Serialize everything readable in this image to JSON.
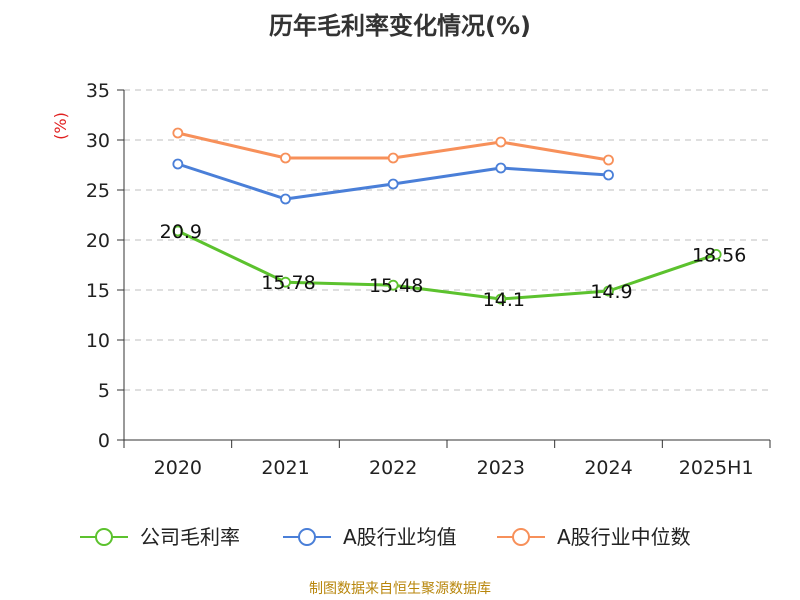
{
  "chart_data": {
    "type": "line",
    "title": "历年毛利率变化情况(%)",
    "ylabel": "(%)",
    "categories": [
      "2020",
      "2021",
      "2022",
      "2023",
      "2024",
      "2025H1"
    ],
    "ylim": [
      0,
      35
    ],
    "yticks": [
      "0",
      "5",
      "10",
      "15",
      "20",
      "25",
      "30",
      "35"
    ],
    "grid": true,
    "legend_position": "bottom",
    "series": [
      {
        "name": "公司毛利率",
        "color": "#5cc22e",
        "values": [
          20.9,
          15.78,
          15.48,
          14.1,
          14.9,
          18.56
        ],
        "labels": [
          "20.9",
          "15.78",
          "15.48",
          "14.1",
          "14.9",
          "18.56"
        ]
      },
      {
        "name": "A股行业均值",
        "color": "#4a7fd8",
        "values": [
          27.6,
          24.1,
          25.6,
          27.2,
          26.5,
          null
        ]
      },
      {
        "name": "A股行业中位数",
        "color": "#f7905a",
        "values": [
          30.7,
          28.2,
          28.2,
          29.8,
          28.0,
          null
        ]
      }
    ]
  },
  "source": "制图数据来自恒生聚源数据库",
  "colors": {
    "ylabel": "#e02020",
    "axis": "#333333",
    "grid": "#cccccc"
  }
}
